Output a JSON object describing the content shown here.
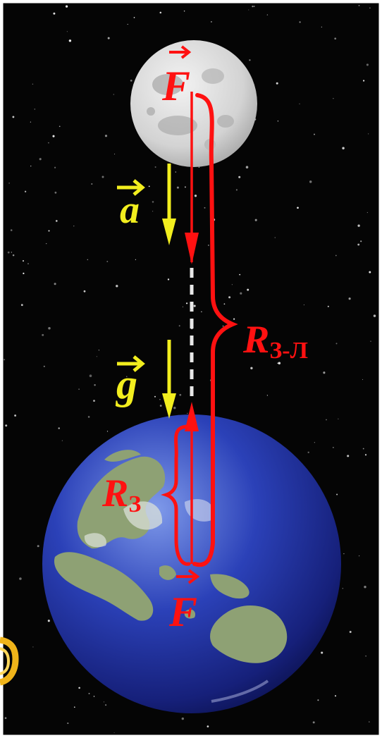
{
  "figure": {
    "labels": {
      "force_moon": "F",
      "accel_moon": "a",
      "gravity": "g",
      "earth_moon_distance": {
        "main": "R",
        "sub": "З-Л"
      },
      "earth_radius": {
        "main": "R",
        "sub": "З"
      },
      "force_earth": "F"
    },
    "colors": {
      "space": "#050505",
      "force": "#ff1111",
      "acceleration": "#f2ee1e",
      "earth_ocean": "#1e2e9c",
      "earth_land": "#8ea174",
      "moon": "#d8d8d8"
    }
  }
}
